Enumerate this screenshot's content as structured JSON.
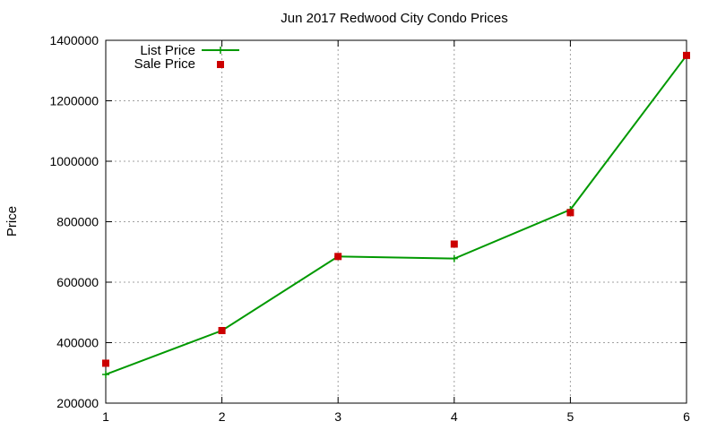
{
  "chart_data": {
    "type": "line",
    "title": "Jun 2017 Redwood City Condo Prices",
    "xlabel": "",
    "ylabel": "Price",
    "xlim": [
      1,
      6
    ],
    "ylim": [
      200000,
      1400000
    ],
    "x_ticks": [
      "1",
      "2",
      "3",
      "4",
      "5",
      "6"
    ],
    "y_ticks": [
      "200000",
      "400000",
      "600000",
      "800000",
      "1000000",
      "1200000",
      "1400000"
    ],
    "grid": true,
    "legend_position": "top-left",
    "series": [
      {
        "name": "List Price",
        "style": "line-with-plus-markers",
        "color": "#009900",
        "x": [
          1,
          2,
          3,
          4,
          5,
          6
        ],
        "values": [
          295000,
          440000,
          685000,
          678000,
          840000,
          1350000
        ]
      },
      {
        "name": "Sale Price",
        "style": "square-points",
        "color": "#cc0000",
        "x": [
          1,
          2,
          3,
          4,
          5,
          6
        ],
        "values": [
          332000,
          440000,
          685000,
          726000,
          830000,
          1350000
        ]
      }
    ]
  }
}
